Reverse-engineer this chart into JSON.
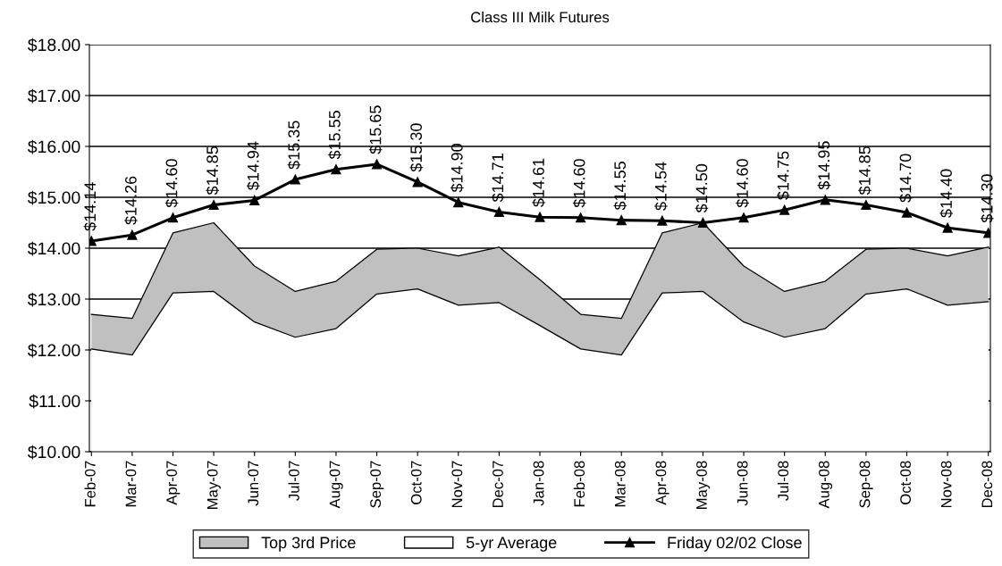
{
  "chart_data": {
    "type": "area",
    "title": "Class III Milk Futures",
    "categories": [
      "Feb-07",
      "Mar-07",
      "Apr-07",
      "May-07",
      "Jun-07",
      "Jul-07",
      "Aug-07",
      "Sep-07",
      "Oct-07",
      "Nov-07",
      "Dec-07",
      "Jan-08",
      "Feb-08",
      "Mar-08",
      "Apr-08",
      "May-08",
      "Jun-08",
      "Jul-08",
      "Aug-08",
      "Sep-08",
      "Oct-08",
      "Nov-08",
      "Dec-08"
    ],
    "series": [
      {
        "name": "Top 3rd Price",
        "color": "#c0c0c0",
        "values": [
          12.7,
          12.62,
          14.3,
          14.5,
          13.65,
          13.15,
          13.35,
          13.98,
          14.0,
          13.85,
          14.02,
          13.38,
          12.7,
          12.62,
          14.3,
          14.5,
          13.65,
          13.15,
          13.35,
          13.98,
          14.0,
          13.85,
          14.02
        ]
      },
      {
        "name": "5-yr Average",
        "color": "#ffffff",
        "values": [
          12.02,
          11.9,
          13.12,
          13.15,
          12.55,
          12.25,
          12.42,
          13.1,
          13.2,
          12.88,
          12.93,
          12.48,
          12.02,
          11.9,
          13.12,
          13.15,
          12.55,
          12.25,
          12.42,
          13.1,
          13.2,
          12.88,
          12.95
        ]
      },
      {
        "name": "Friday 02/02 Close",
        "type": "line",
        "color": "#000000",
        "marker": "triangle",
        "values": [
          14.14,
          14.26,
          14.6,
          14.85,
          14.94,
          15.35,
          15.55,
          15.65,
          15.3,
          14.9,
          14.71,
          14.61,
          14.6,
          14.55,
          14.54,
          14.5,
          14.6,
          14.75,
          14.95,
          14.85,
          14.7,
          14.4,
          14.3
        ],
        "value_labels": [
          "$14.14",
          "$14.26",
          "$14.60",
          "$14.85",
          "$14.94",
          "$15.35",
          "$15.55",
          "$15.65",
          "$15.30",
          "$14.90",
          "$14.71",
          "$14.61",
          "$14.60",
          "$14.55",
          "$14.54",
          "$14.50",
          "$14.60",
          "$14.75",
          "$14.95",
          "$14.85",
          "$14.70",
          "$14.40",
          "$14.30"
        ]
      }
    ],
    "ylim": [
      10,
      18
    ],
    "yticks": [
      {
        "value": 10,
        "label": "$10.00"
      },
      {
        "value": 11,
        "label": "$11.00"
      },
      {
        "value": 12,
        "label": "$12.00"
      },
      {
        "value": 13,
        "label": "$13.00"
      },
      {
        "value": 14,
        "label": "$14.00"
      },
      {
        "value": 15,
        "label": "$15.00"
      },
      {
        "value": 16,
        "label": "$16.00"
      },
      {
        "value": 17,
        "label": "$17.00"
      },
      {
        "value": 18,
        "label": "$18.00"
      }
    ],
    "grid": "y",
    "legend": "bottom"
  }
}
